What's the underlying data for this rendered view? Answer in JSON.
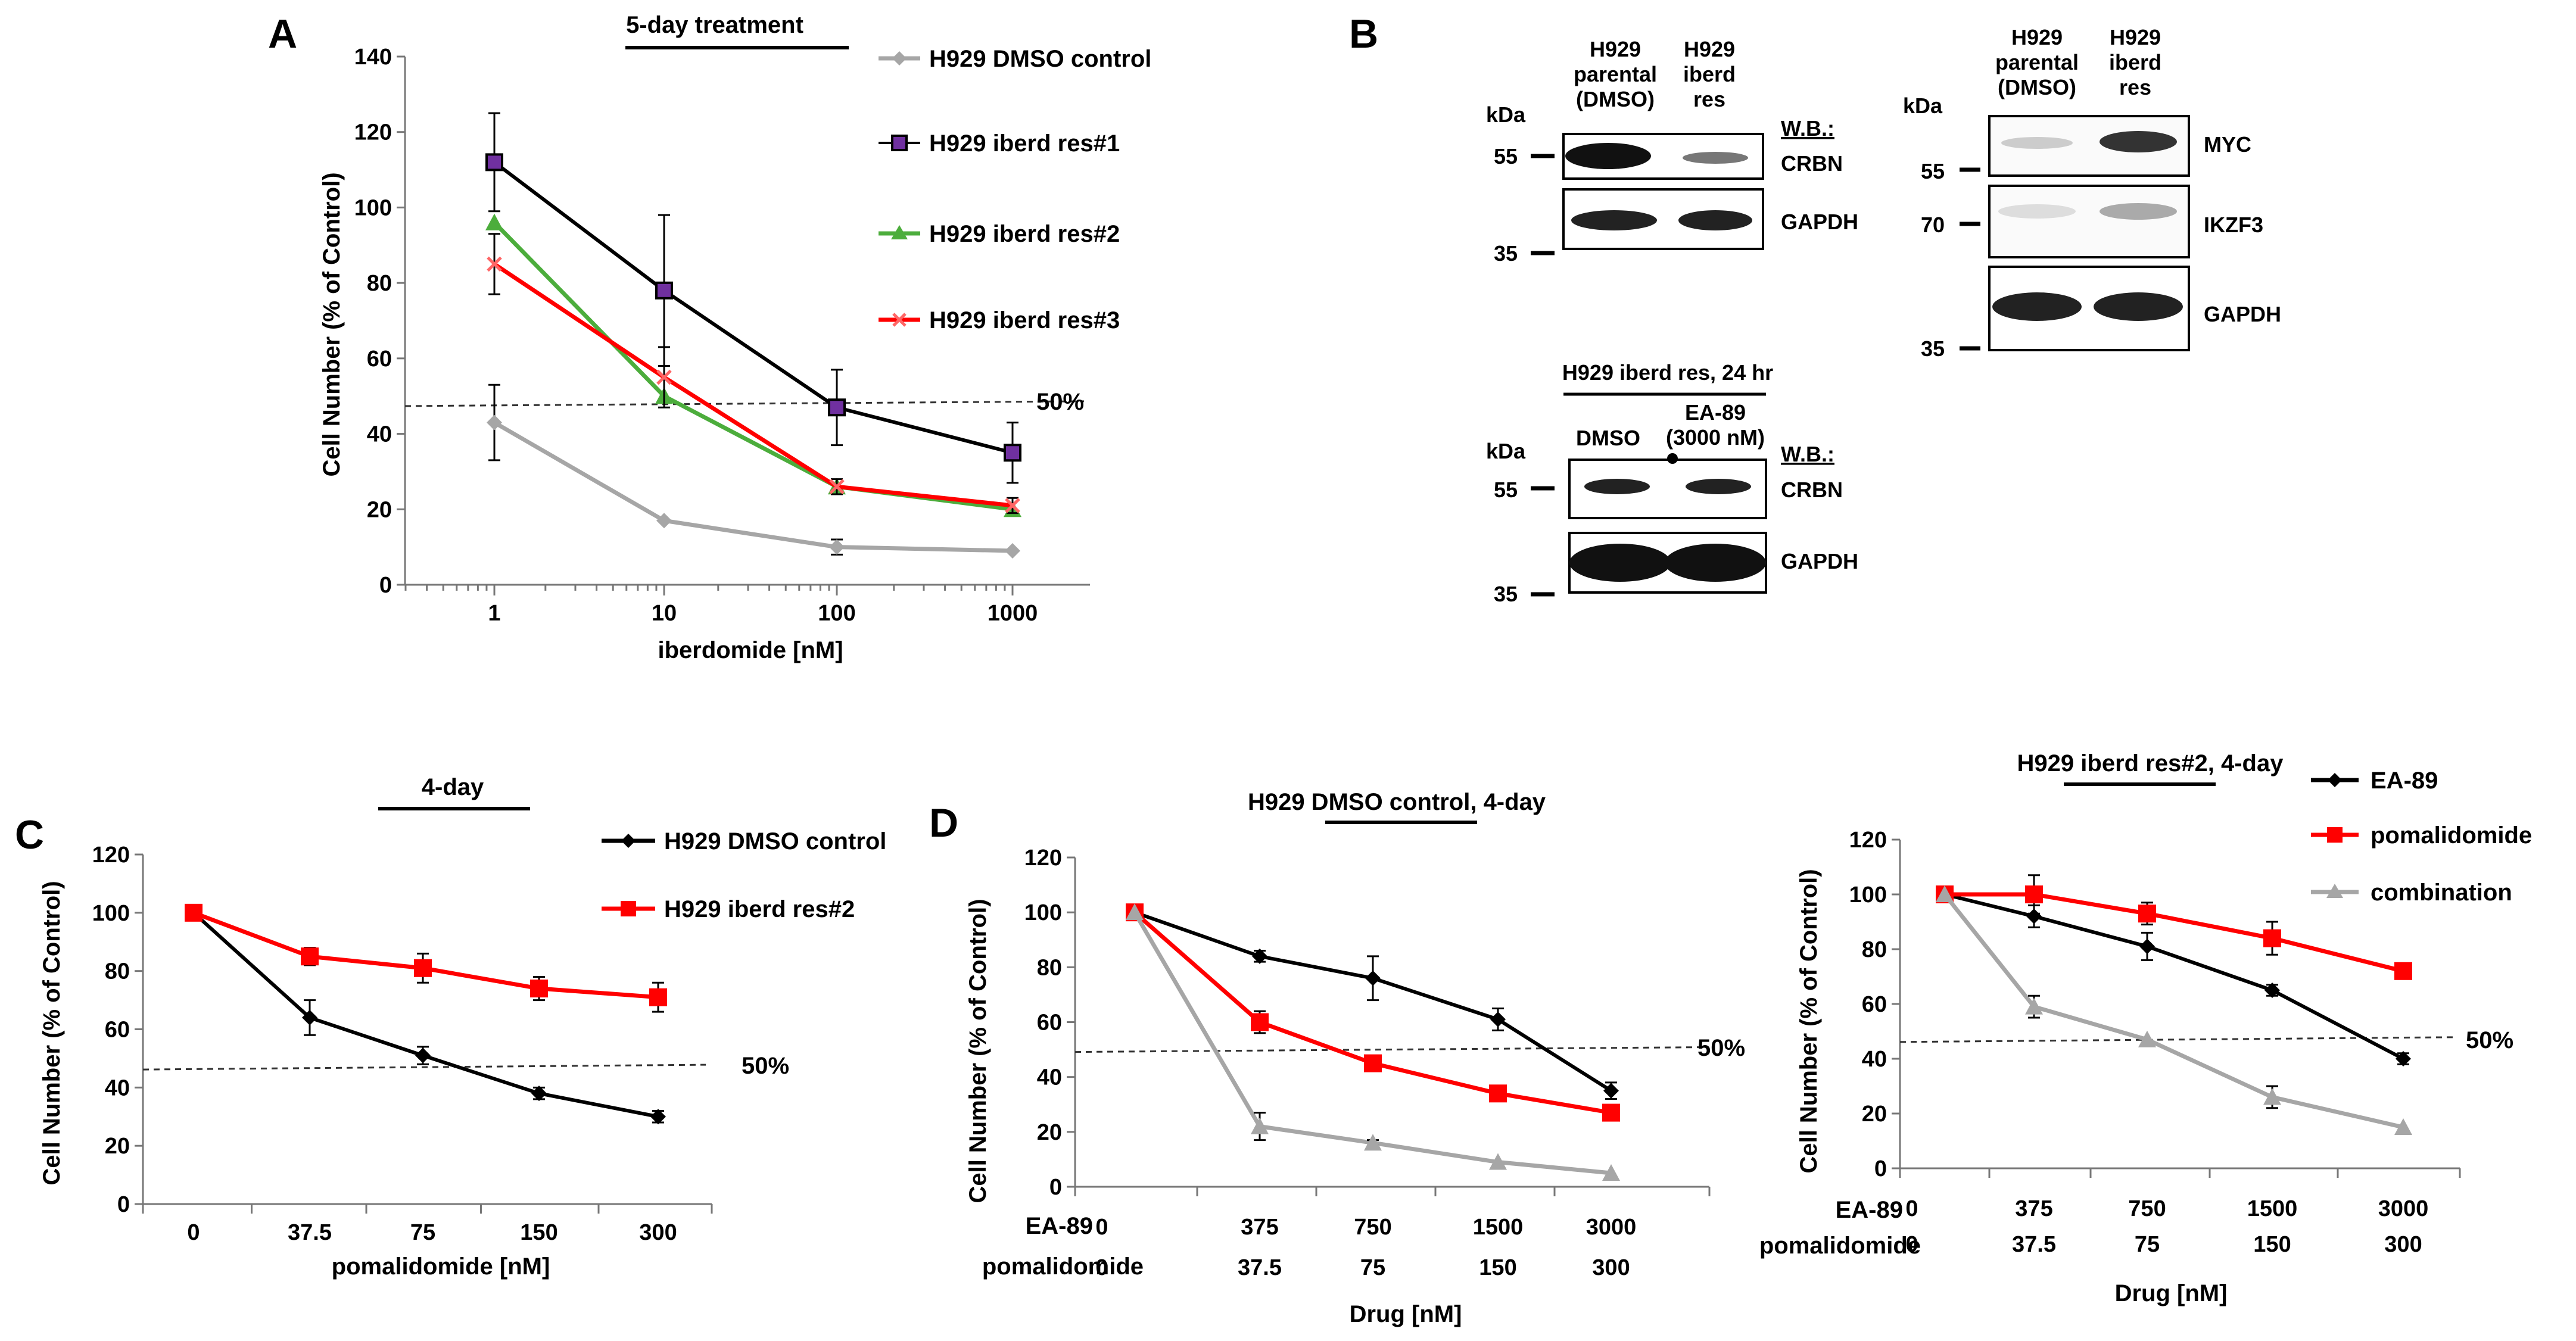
{
  "figure": {
    "panel_labels": [
      "A",
      "B",
      "C",
      "D"
    ],
    "blots": {
      "top_left": {
        "lanes": [
          "H929 parental (DMSO)",
          "H929 iberd res"
        ],
        "kda_label": "kDa",
        "wb_label": "W.B.:",
        "markers": [
          "55",
          "35"
        ],
        "bands": [
          "CRBN",
          "GAPDH"
        ]
      },
      "top_right": {
        "lanes": [
          "H929 parental (DMSO)",
          "H929 iberd res"
        ],
        "kda_label": "kDa",
        "markers": [
          "55",
          "70",
          "35"
        ],
        "bands": [
          "MYC",
          "IKZF3",
          "GAPDH"
        ]
      },
      "bottom": {
        "title": "H929 iberd res, 24 hr",
        "lanes": [
          "DMSO",
          "EA-89 (3000 nM)"
        ],
        "kda_label": "kDa",
        "wb_label": "W.B.:",
        "markers": [
          "55",
          "35"
        ],
        "bands": [
          "CRBN",
          "GAPDH"
        ]
      }
    }
  },
  "chart_data": [
    {
      "id": "A",
      "type": "line",
      "title": "5-day treatment",
      "xlabel": "iberdomide [nM]",
      "ylabel": "Cell Number (% of Control)",
      "x_scale": "log",
      "categories": [
        "1",
        "10",
        "100",
        "1000"
      ],
      "ylim": [
        0,
        140
      ],
      "yticks": [
        "0",
        "20",
        "40",
        "60",
        "80",
        "100",
        "120",
        "140"
      ],
      "reference_line": {
        "y": 48,
        "label": "50%"
      },
      "series": [
        {
          "name": "H929 DMSO control",
          "color": "#a6a6a6",
          "marker": "diamond",
          "values": [
            43,
            17,
            10,
            9
          ],
          "errors": [
            10,
            0,
            2,
            0
          ]
        },
        {
          "name": "H929 iberd res#1",
          "color": "#000000",
          "marker": "square",
          "values": [
            112,
            78,
            47,
            35
          ],
          "errors": [
            13,
            20,
            10,
            8
          ]
        },
        {
          "name": "H929 iberd res#2",
          "color": "#4cad3c",
          "marker": "triangle",
          "values": [
            96,
            50,
            26,
            20
          ],
          "errors": [
            0,
            0,
            0,
            0
          ]
        },
        {
          "name": "H929 iberd res#3",
          "color": "#ff0000",
          "marker": "x",
          "values": [
            85,
            55,
            26,
            21
          ],
          "errors": [
            8,
            8,
            2,
            2
          ]
        }
      ]
    },
    {
      "id": "C",
      "type": "line",
      "title": "4-day",
      "xlabel": "pomalidomide [nM]",
      "ylabel": "Cell Number (% of Control)",
      "categories": [
        "0",
        "37.5",
        "75",
        "150",
        "300"
      ],
      "ylim": [
        0,
        120
      ],
      "yticks": [
        "0",
        "20",
        "40",
        "60",
        "80",
        "100",
        "120"
      ],
      "reference_line": {
        "y": 47,
        "label": "50%"
      },
      "series": [
        {
          "name": "H929 DMSO control",
          "color": "#000000",
          "marker": "diamond",
          "values": [
            100,
            64,
            51,
            38,
            30
          ],
          "errors": [
            0,
            6,
            3,
            2,
            2
          ]
        },
        {
          "name": "H929 iberd res#2",
          "color": "#ff0000",
          "marker": "square",
          "values": [
            100,
            85,
            81,
            74,
            71
          ],
          "errors": [
            0,
            3,
            5,
            4,
            5
          ]
        }
      ]
    },
    {
      "id": "D1",
      "type": "line",
      "title": "H929 DMSO control, 4-day",
      "xlabel": "Drug [nM]",
      "ylabel": "Cell Number (% of Control)",
      "categories_ea89": [
        "0",
        "375",
        "750",
        "1500",
        "3000"
      ],
      "categories_pomalidomide": [
        "0",
        "37.5",
        "75",
        "150",
        "300"
      ],
      "row_labels": [
        "EA-89",
        "pomalidomide"
      ],
      "ylim": [
        0,
        120
      ],
      "yticks": [
        "0",
        "20",
        "40",
        "60",
        "80",
        "100",
        "120"
      ],
      "reference_line": {
        "y": 50,
        "label": "50%"
      },
      "series": [
        {
          "name": "EA-89",
          "color": "#000000",
          "marker": "diamond",
          "values": [
            100,
            84,
            76,
            61,
            35
          ],
          "errors": [
            0,
            2,
            8,
            4,
            3
          ]
        },
        {
          "name": "pomalidomide",
          "color": "#ff0000",
          "marker": "square",
          "values": [
            100,
            60,
            45,
            34,
            27
          ],
          "errors": [
            0,
            4,
            2,
            2,
            2
          ]
        },
        {
          "name": "combination",
          "color": "#a6a6a6",
          "marker": "triangle",
          "values": [
            100,
            22,
            16,
            9,
            5
          ],
          "errors": [
            0,
            5,
            1,
            0,
            0
          ]
        }
      ]
    },
    {
      "id": "D2",
      "type": "line",
      "title": "H929 iberd res#2, 4-day",
      "xlabel": "Drug [nM]",
      "ylabel": "Cell Number (% of Control)",
      "categories_ea89": [
        "0",
        "375",
        "750",
        "1500",
        "3000"
      ],
      "categories_pomalidomide": [
        "0",
        "37.5",
        "75",
        "150",
        "300"
      ],
      "row_labels": [
        "EA-89",
        "pomalidomide"
      ],
      "ylim": [
        0,
        120
      ],
      "yticks": [
        "0",
        "20",
        "40",
        "60",
        "80",
        "100",
        "120"
      ],
      "reference_line": {
        "y": 47,
        "label": "50%"
      },
      "legend": [
        "EA-89",
        "pomalidomide",
        "combination"
      ],
      "series": [
        {
          "name": "EA-89",
          "color": "#000000",
          "marker": "diamond",
          "values": [
            100,
            92,
            81,
            65,
            40
          ],
          "errors": [
            0,
            4,
            5,
            2,
            2
          ]
        },
        {
          "name": "pomalidomide",
          "color": "#ff0000",
          "marker": "square",
          "values": [
            100,
            100,
            93,
            84,
            72
          ],
          "errors": [
            0,
            7,
            4,
            6,
            2
          ]
        },
        {
          "name": "combination",
          "color": "#a6a6a6",
          "marker": "triangle",
          "values": [
            100,
            59,
            47,
            26,
            15
          ],
          "errors": [
            0,
            4,
            0,
            4,
            0
          ]
        }
      ]
    }
  ]
}
